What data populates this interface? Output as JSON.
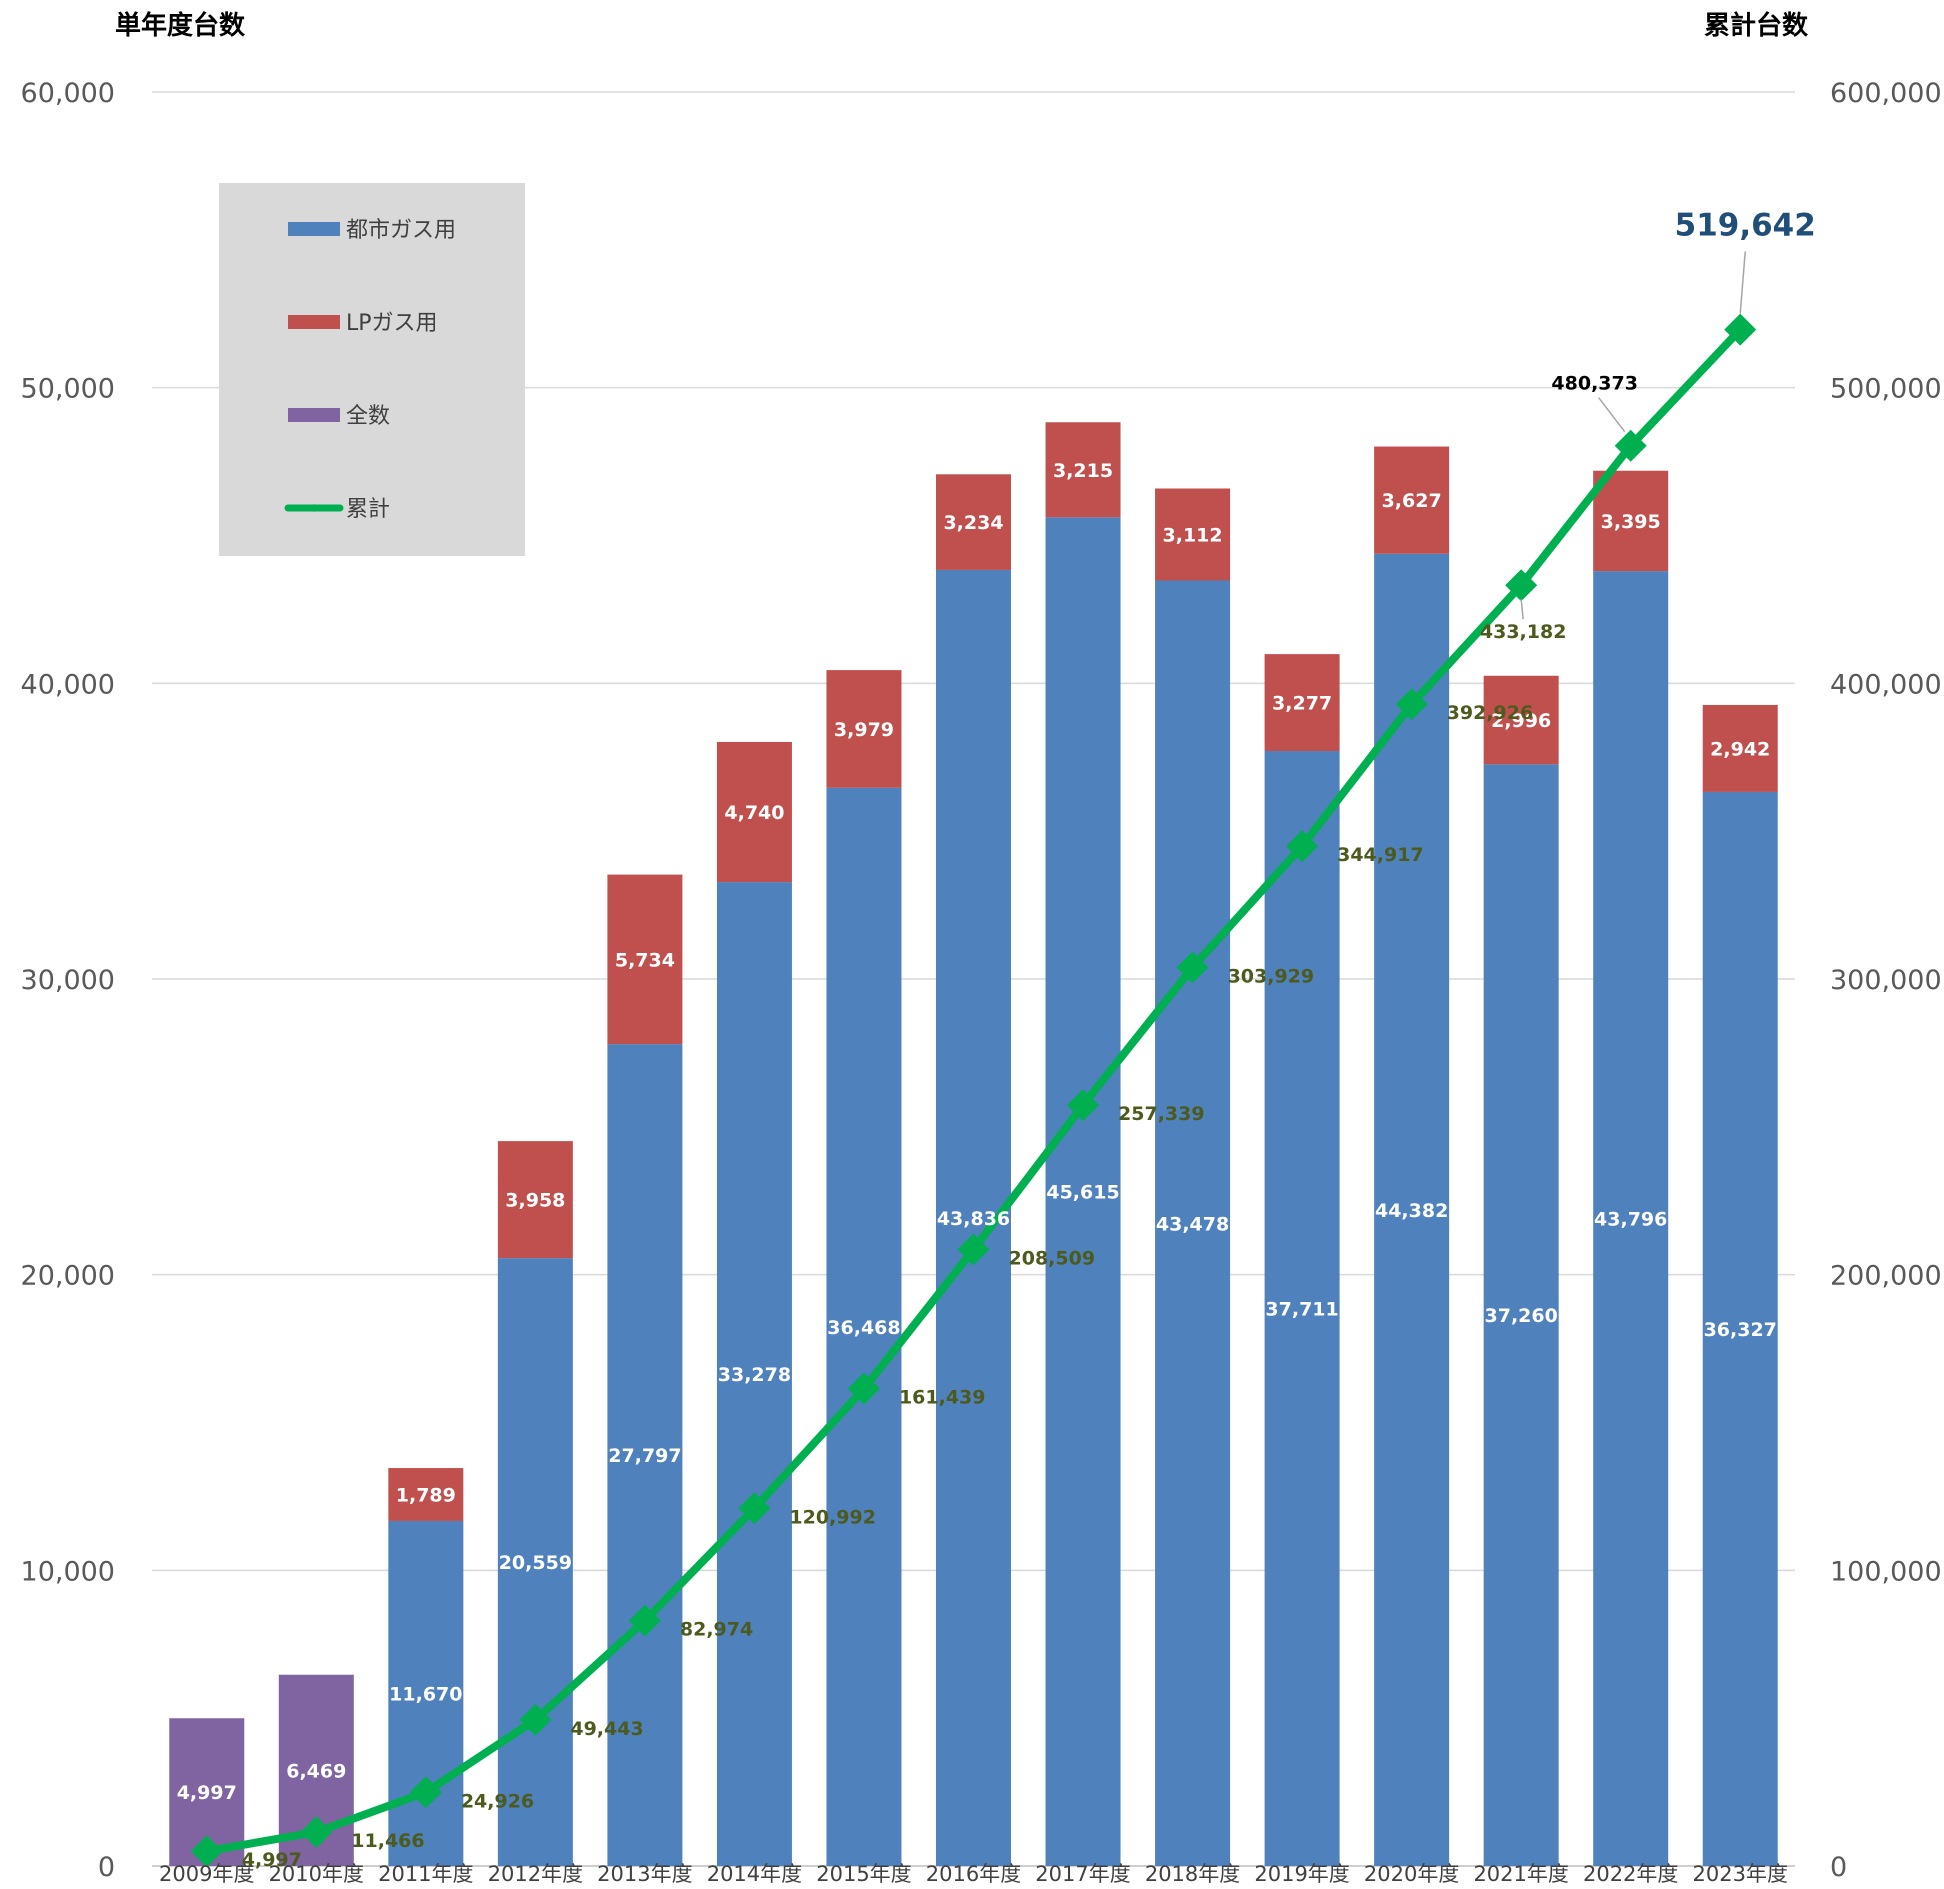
{
  "chart_data": {
    "type": "bar",
    "stacked": true,
    "categories": [
      "2009年度",
      "2010年度",
      "2011年度",
      "2012年度",
      "2013年度",
      "2014年度",
      "2015年度",
      "2016年度",
      "2017年度",
      "2018年度",
      "2019年度",
      "2020年度",
      "2021年度",
      "2022年度",
      "2023年度"
    ],
    "series": [
      {
        "name": "都市ガス用",
        "type": "bar",
        "axis": "left",
        "color": "#4f81bd",
        "values": [
          null,
          null,
          11670,
          20559,
          27797,
          33278,
          36468,
          43836,
          45615,
          43478,
          37711,
          44382,
          37260,
          43796,
          36327
        ],
        "labels": [
          "",
          "",
          "11,670",
          "20,559",
          "27,797",
          "33,278",
          "36,468",
          "43,836",
          "45,615",
          "43,478",
          "37,711",
          "44,382",
          "37,260",
          "43,796",
          "36,327"
        ]
      },
      {
        "name": "LPガス用",
        "type": "bar",
        "axis": "left",
        "color": "#c0504d",
        "values": [
          null,
          null,
          1789,
          3958,
          5734,
          4740,
          3979,
          3234,
          3215,
          3112,
          3277,
          3627,
          2996,
          3395,
          2942
        ],
        "labels": [
          "",
          "",
          "1,789",
          "3,958",
          "5,734",
          "4,740",
          "3,979",
          "3,234",
          "3,215",
          "3,112",
          "3,277",
          "3,627",
          "2,996",
          "3,395",
          "2,942"
        ]
      },
      {
        "name": "全数",
        "type": "bar",
        "axis": "left",
        "color": "#8064a2",
        "values": [
          4997,
          6469,
          null,
          null,
          null,
          null,
          null,
          null,
          null,
          null,
          null,
          null,
          null,
          null,
          null
        ],
        "labels": [
          "4,997",
          "6,469",
          "",
          "",
          "",
          "",
          "",
          "",
          "",
          "",
          "",
          "",
          "",
          "",
          ""
        ]
      },
      {
        "name": "累計",
        "type": "line",
        "axis": "right",
        "color": "#00b050",
        "marker": "diamond",
        "values": [
          4997,
          11466,
          24926,
          49443,
          82974,
          120992,
          161439,
          208509,
          257339,
          303929,
          344917,
          392926,
          433182,
          480373,
          519642
        ],
        "labels": [
          "4,997",
          "11,466",
          "24,926",
          "49,443",
          "82,974",
          "120,992",
          "161,439",
          "208,509",
          "257,339",
          "303,929",
          "344,917",
          "392,926",
          "433,182",
          "480,373",
          "519,642"
        ]
      }
    ],
    "ylabel_left": "単年度台数",
    "ylabel_right": "累計台数",
    "ylim_left": [
      0,
      60000
    ],
    "ylim_right": [
      0,
      600000
    ],
    "yticks_left": [
      "0",
      "10,000",
      "20,000",
      "30,000",
      "40,000",
      "50,000",
      "60,000"
    ],
    "yticks_right": [
      "0",
      "100,000",
      "200,000",
      "300,000",
      "400,000",
      "500,000",
      "600,000"
    ],
    "grid": true,
    "legend_position": "top-left",
    "legend": [
      "都市ガス用",
      "LPガス用",
      "全数",
      "累計"
    ],
    "legend_colors": [
      "#4f81bd",
      "#c0504d",
      "#8064a2",
      "#00b050"
    ]
  }
}
